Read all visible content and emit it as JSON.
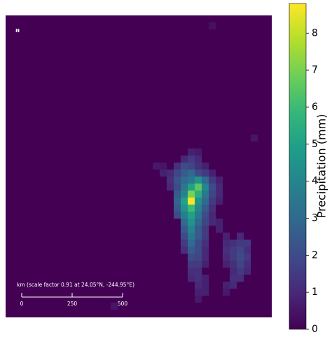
{
  "map": {
    "north": "N",
    "cells": [
      [
        1,
        29,
        0.4
      ],
      [
        17,
        35,
        0.5
      ],
      [
        19,
        26,
        0.8
      ],
      [
        19,
        27,
        0.6
      ],
      [
        20,
        25,
        1.0
      ],
      [
        20,
        26,
        1.5
      ],
      [
        20,
        27,
        1.0
      ],
      [
        21,
        21,
        0.6
      ],
      [
        21,
        22,
        0.5
      ],
      [
        21,
        24,
        1.2
      ],
      [
        21,
        25,
        2.0
      ],
      [
        21,
        26,
        1.8
      ],
      [
        21,
        27,
        1.2
      ],
      [
        21,
        28,
        0.8
      ],
      [
        22,
        22,
        0.8
      ],
      [
        22,
        23,
        1.0
      ],
      [
        22,
        24,
        1.8
      ],
      [
        22,
        25,
        2.5
      ],
      [
        22,
        26,
        3.0
      ],
      [
        22,
        27,
        2.0
      ],
      [
        22,
        28,
        1.5
      ],
      [
        22,
        29,
        0.8
      ],
      [
        23,
        23,
        1.2
      ],
      [
        23,
        24,
        2.2
      ],
      [
        23,
        25,
        3.0
      ],
      [
        23,
        26,
        3.5
      ],
      [
        23,
        27,
        4.5
      ],
      [
        23,
        28,
        3.0
      ],
      [
        23,
        29,
        1.5
      ],
      [
        23,
        30,
        0.8
      ],
      [
        24,
        23,
        1.0
      ],
      [
        24,
        24,
        2.0
      ],
      [
        24,
        25,
        3.5
      ],
      [
        24,
        26,
        5.0
      ],
      [
        24,
        27,
        6.5
      ],
      [
        24,
        28,
        4.0
      ],
      [
        24,
        29,
        2.0
      ],
      [
        24,
        30,
        1.0
      ],
      [
        25,
        24,
        2.5
      ],
      [
        25,
        25,
        4.0
      ],
      [
        25,
        26,
        7.0
      ],
      [
        25,
        27,
        5.5
      ],
      [
        25,
        28,
        3.5
      ],
      [
        25,
        29,
        1.8
      ],
      [
        25,
        30,
        1.0
      ],
      [
        26,
        24,
        2.8
      ],
      [
        26,
        25,
        5.0
      ],
      [
        26,
        26,
        8.7
      ],
      [
        26,
        27,
        4.5
      ],
      [
        26,
        28,
        3.0
      ],
      [
        26,
        29,
        1.5
      ],
      [
        26,
        30,
        0.8
      ],
      [
        27,
        24,
        2.5
      ],
      [
        27,
        25,
        4.5
      ],
      [
        27,
        26,
        6.0
      ],
      [
        27,
        27,
        4.0
      ],
      [
        27,
        28,
        2.5
      ],
      [
        27,
        29,
        1.2
      ],
      [
        28,
        24,
        2.0
      ],
      [
        28,
        25,
        3.8
      ],
      [
        28,
        26,
        5.0
      ],
      [
        28,
        27,
        3.5
      ],
      [
        28,
        28,
        2.0
      ],
      [
        28,
        29,
        1.0
      ],
      [
        29,
        25,
        3.0
      ],
      [
        29,
        26,
        4.5
      ],
      [
        29,
        27,
        3.0
      ],
      [
        29,
        28,
        1.8
      ],
      [
        29,
        29,
        1.0
      ],
      [
        29,
        30,
        0.8
      ],
      [
        30,
        25,
        2.5
      ],
      [
        30,
        26,
        4.0
      ],
      [
        30,
        27,
        2.5
      ],
      [
        30,
        28,
        1.5
      ],
      [
        30,
        30,
        0.8
      ],
      [
        31,
        25,
        2.0
      ],
      [
        31,
        26,
        3.5
      ],
      [
        31,
        27,
        2.5
      ],
      [
        31,
        28,
        1.5
      ],
      [
        31,
        31,
        0.8
      ],
      [
        31,
        33,
        1.0
      ],
      [
        32,
        25,
        1.5
      ],
      [
        32,
        26,
        3.0
      ],
      [
        32,
        27,
        2.0
      ],
      [
        32,
        28,
        1.2
      ],
      [
        32,
        31,
        1.0
      ],
      [
        32,
        32,
        1.2
      ],
      [
        32,
        33,
        1.5
      ],
      [
        32,
        34,
        1.5
      ],
      [
        33,
        25,
        1.2
      ],
      [
        33,
        26,
        2.5
      ],
      [
        33,
        27,
        2.0
      ],
      [
        33,
        28,
        1.0
      ],
      [
        33,
        31,
        1.2
      ],
      [
        33,
        32,
        1.5
      ],
      [
        33,
        33,
        1.8
      ],
      [
        33,
        34,
        1.2
      ],
      [
        34,
        26,
        2.0
      ],
      [
        34,
        27,
        1.8
      ],
      [
        34,
        28,
        1.0
      ],
      [
        34,
        31,
        1.0
      ],
      [
        34,
        32,
        1.5
      ],
      [
        34,
        33,
        2.0
      ],
      [
        34,
        34,
        1.5
      ],
      [
        35,
        26,
        1.5
      ],
      [
        35,
        27,
        1.5
      ],
      [
        35,
        28,
        0.8
      ],
      [
        35,
        31,
        0.8
      ],
      [
        35,
        32,
        1.2
      ],
      [
        35,
        33,
        1.8
      ],
      [
        35,
        34,
        1.2
      ],
      [
        36,
        26,
        1.2
      ],
      [
        36,
        27,
        1.2
      ],
      [
        36,
        32,
        1.0
      ],
      [
        36,
        33,
        1.5
      ],
      [
        36,
        34,
        1.0
      ],
      [
        37,
        26,
        1.0
      ],
      [
        37,
        27,
        1.2
      ],
      [
        37,
        28,
        0.8
      ],
      [
        37,
        32,
        1.2
      ],
      [
        37,
        33,
        1.2
      ],
      [
        38,
        27,
        1.0
      ],
      [
        38,
        28,
        0.8
      ],
      [
        38,
        31,
        0.8
      ],
      [
        38,
        32,
        1.0
      ],
      [
        39,
        27,
        0.8
      ],
      [
        39,
        28,
        0.8
      ],
      [
        39,
        31,
        0.6
      ],
      [
        40,
        27,
        0.6
      ],
      [
        41,
        15,
        0.5
      ]
    ]
  },
  "scale_bar": {
    "label": "km (scale factor 0.91 at 24.05°N, -244.95°E)",
    "ticks": [
      0,
      250,
      500
    ]
  },
  "colorbar": {
    "label": "Precipitation (mm)",
    "colormap": "viridis",
    "clim": [
      0,
      8.8
    ],
    "ticks": [
      0,
      1,
      2,
      3,
      4,
      5,
      6,
      7,
      8
    ]
  }
}
